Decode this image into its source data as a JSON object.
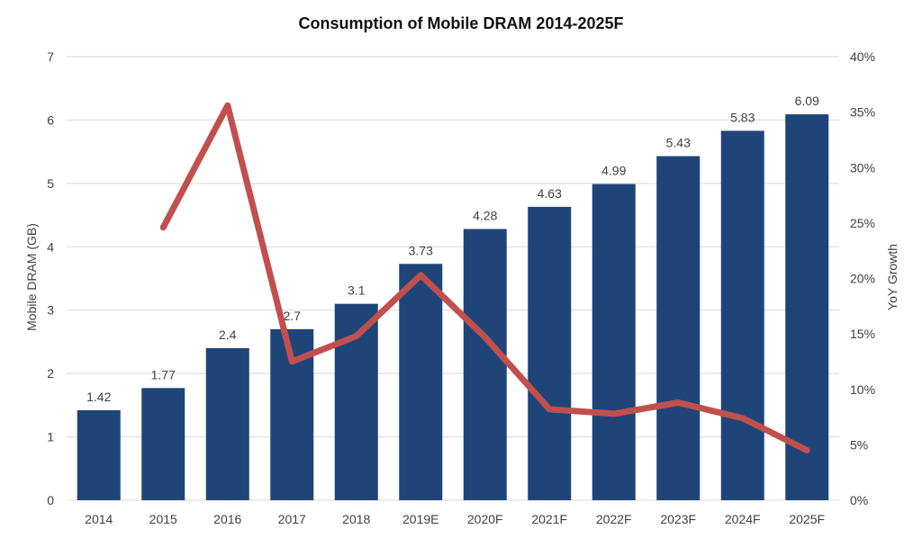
{
  "chart_data": {
    "type": "bar",
    "title": "Consumption of Mobile DRAM 2014-2025F",
    "categories": [
      "2014",
      "2015",
      "2016",
      "2017",
      "2018",
      "2019E",
      "2020F",
      "2021F",
      "2022F",
      "2023F",
      "2024F",
      "2025F"
    ],
    "ylabel": "Mobile DRAM (GB)",
    "ylim": [
      0,
      7
    ],
    "yticks": [
      "0",
      "1",
      "2",
      "3",
      "4",
      "5",
      "6",
      "7"
    ],
    "y2label": "YoY Growth",
    "y2lim": [
      0,
      40
    ],
    "y2ticks": [
      "0%",
      "5%",
      "10%",
      "15%",
      "20%",
      "25%",
      "30%",
      "35%",
      "40%"
    ],
    "grid": true,
    "series": [
      {
        "type": "bar",
        "axis": "left",
        "color": "#1f4478",
        "values": [
          1.42,
          1.77,
          2.4,
          2.7,
          3.1,
          3.73,
          4.28,
          4.63,
          4.99,
          5.43,
          5.83,
          6.09
        ],
        "labels": [
          "1.42",
          "1.77",
          "2.4",
          "2.7",
          "3.1",
          "3.73",
          "4.28",
          "4.63",
          "4.99",
          "5.43",
          "5.83",
          "6.09"
        ]
      },
      {
        "type": "line",
        "axis": "right",
        "color": "#c0504d",
        "values": [
          null,
          24.6,
          35.6,
          12.5,
          14.8,
          20.3,
          14.7,
          8.2,
          7.8,
          8.8,
          7.4,
          4.5
        ]
      }
    ]
  }
}
